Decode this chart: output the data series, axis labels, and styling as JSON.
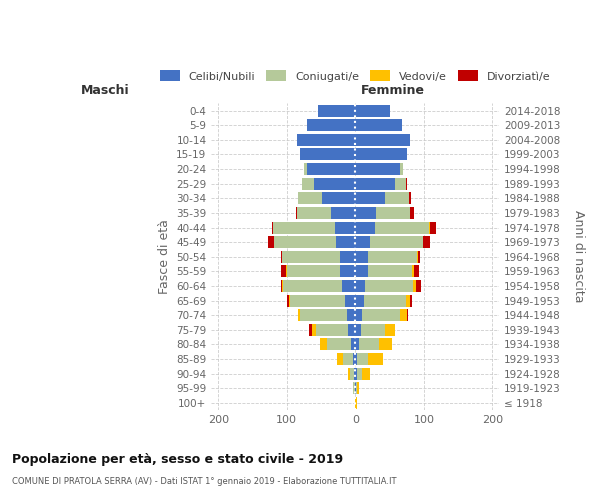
{
  "age_groups": [
    "100+",
    "95-99",
    "90-94",
    "85-89",
    "80-84",
    "75-79",
    "70-74",
    "65-69",
    "60-64",
    "55-59",
    "50-54",
    "45-49",
    "40-44",
    "35-39",
    "30-34",
    "25-29",
    "20-24",
    "15-19",
    "10-14",
    "5-9",
    "0-4"
  ],
  "birth_years": [
    "≤ 1918",
    "1919-1923",
    "1924-1928",
    "1929-1933",
    "1934-1938",
    "1939-1943",
    "1944-1948",
    "1949-1953",
    "1954-1958",
    "1959-1963",
    "1964-1968",
    "1969-1973",
    "1974-1978",
    "1979-1983",
    "1984-1988",
    "1989-1993",
    "1994-1998",
    "1999-2003",
    "2004-2008",
    "2009-2013",
    "2014-2018"
  ],
  "male_celibi": [
    1,
    1,
    2,
    3,
    7,
    10,
    12,
    15,
    20,
    22,
    22,
    28,
    30,
    35,
    48,
    60,
    70,
    80,
    85,
    70,
    55
  ],
  "male_coniugati": [
    0,
    2,
    6,
    15,
    35,
    48,
    68,
    80,
    85,
    78,
    85,
    90,
    90,
    50,
    35,
    18,
    5,
    1,
    0,
    0,
    0
  ],
  "male_vedovi": [
    0,
    0,
    2,
    8,
    10,
    5,
    4,
    2,
    2,
    1,
    0,
    0,
    0,
    0,
    0,
    0,
    0,
    0,
    0,
    0,
    0
  ],
  "male_divorziati": [
    0,
    0,
    0,
    0,
    0,
    5,
    0,
    3,
    2,
    8,
    2,
    10,
    2,
    1,
    1,
    0,
    0,
    0,
    0,
    0,
    0
  ],
  "female_celibi": [
    0,
    1,
    2,
    3,
    6,
    8,
    10,
    12,
    14,
    18,
    18,
    22,
    28,
    30,
    43,
    58,
    65,
    75,
    80,
    68,
    50
  ],
  "female_coniugati": [
    0,
    2,
    8,
    15,
    28,
    35,
    55,
    62,
    70,
    65,
    72,
    76,
    80,
    50,
    36,
    16,
    5,
    1,
    0,
    0,
    0
  ],
  "female_vedovi": [
    2,
    3,
    12,
    22,
    20,
    15,
    10,
    6,
    4,
    2,
    1,
    1,
    1,
    0,
    0,
    0,
    0,
    0,
    0,
    0,
    0
  ],
  "female_divorziati": [
    0,
    0,
    0,
    0,
    0,
    0,
    2,
    2,
    8,
    8,
    4,
    10,
    8,
    5,
    2,
    1,
    0,
    0,
    0,
    0,
    0
  ],
  "color_celibi": "#4472c4",
  "color_coniugati": "#b5c99a",
  "color_vedovi": "#ffc000",
  "color_divorziati": "#c00000",
  "title": "Popolazione per età, sesso e stato civile - 2019",
  "subtitle": "COMUNE DI PRATOLA SERRA (AV) - Dati ISTAT 1° gennaio 2019 - Elaborazione TUTTITALIA.IT",
  "xlabel_maschi": "Maschi",
  "xlabel_femmine": "Femmine",
  "ylabel": "Fasce di età",
  "ylabel_right": "Anni di nascita",
  "xlim": 210,
  "bg_color": "#ffffff",
  "grid_color": "#c8c8c8"
}
